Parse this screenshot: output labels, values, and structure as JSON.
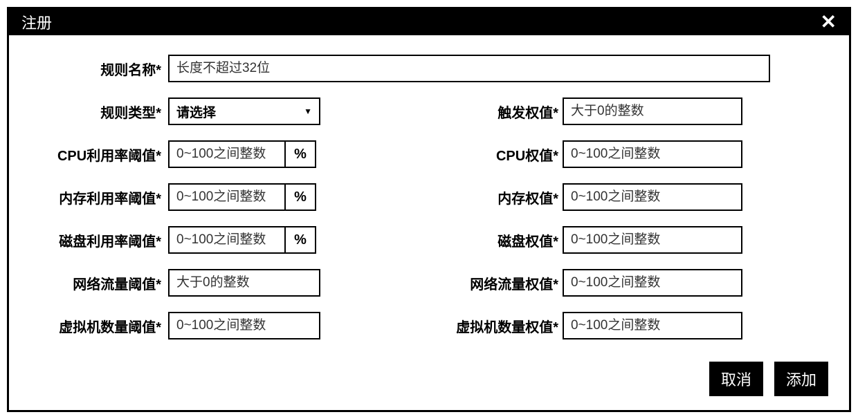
{
  "dialog": {
    "title": "注册",
    "close_symbol": "✕"
  },
  "labels": {
    "rule_name": "规则名称*",
    "rule_type": "规则类型*",
    "trigger_weight": "触发权值*",
    "cpu_threshold": "CPU利用率阈值*",
    "cpu_weight": "CPU权值*",
    "mem_threshold": "内存利用率阈值*",
    "mem_weight": "内存权值*",
    "disk_threshold": "磁盘利用率阈值*",
    "disk_weight": "磁盘权值*",
    "net_threshold": "网络流量阈值*",
    "net_weight": "网络流量权值*",
    "vm_threshold": "虚拟机数量阈值*",
    "vm_weight": "虚拟机数量权值*"
  },
  "placeholders": {
    "rule_name": "长度不超过32位",
    "int_0_100": "0~100之间整数",
    "gt_zero_int": "大于0的整数",
    "select": "请选择"
  },
  "units": {
    "percent": "%"
  },
  "buttons": {
    "cancel": "取消",
    "add": "添加"
  },
  "colors": {
    "titlebar_bg": "#000000",
    "titlebar_fg": "#ffffff",
    "border": "#000000",
    "button_bg": "#000000",
    "button_fg": "#ffffff",
    "background": "#ffffff"
  }
}
